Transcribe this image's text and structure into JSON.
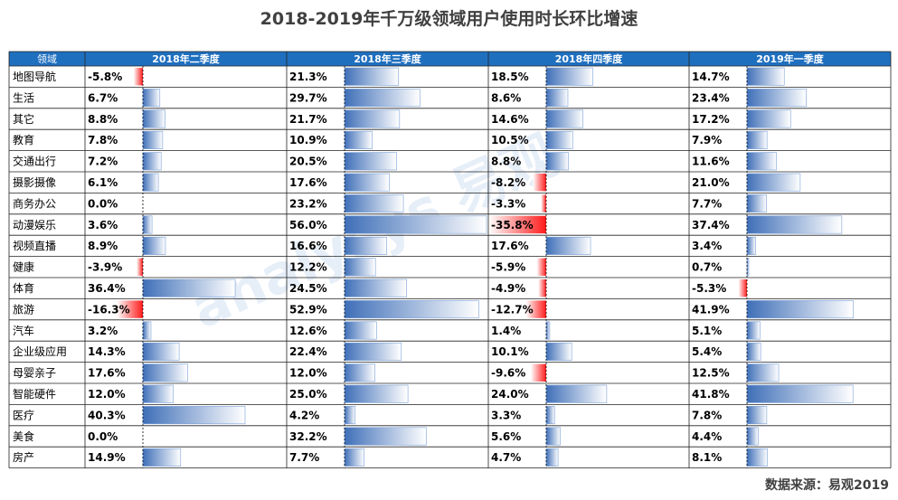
{
  "title": "2018-2019年千万级领域用户使用时长环比增速",
  "source": "数据来源：易观2019",
  "watermark": "analysys 易观",
  "colors": {
    "header_bg": "#1f6fbf",
    "header_text": "#ffffff",
    "positive_bar": "#3f6fb8",
    "negative_bar": "#ff1a1a",
    "border": "#222222",
    "text": "#000000"
  },
  "chart_data": {
    "type": "table",
    "row_header": "领域",
    "columns": [
      "2018年二季度",
      "2018年三季度",
      "2018年四季度",
      "2019年一季度"
    ],
    "unit": "%",
    "rows": [
      {
        "name": "地图导航",
        "values": [
          -5.8,
          21.3,
          18.5,
          14.7
        ],
        "labels": [
          "-5.8%",
          "21.3%",
          "18.5%",
          "14.7%"
        ]
      },
      {
        "name": "生活",
        "values": [
          6.7,
          29.7,
          8.6,
          23.4
        ],
        "labels": [
          "6.7%",
          "29.7%",
          "8.6%",
          "23.4%"
        ]
      },
      {
        "name": "其它",
        "values": [
          8.8,
          21.7,
          14.6,
          17.2
        ],
        "labels": [
          "8.8%",
          "21.7%",
          "14.6%",
          "17.2%"
        ]
      },
      {
        "name": "教育",
        "values": [
          7.8,
          10.9,
          10.5,
          7.9
        ],
        "labels": [
          "7.8%",
          "10.9%",
          "10.5%",
          "7.9%"
        ]
      },
      {
        "name": "交通出行",
        "values": [
          7.2,
          20.5,
          8.8,
          11.6
        ],
        "labels": [
          "7.2%",
          "20.5%",
          "8.8%",
          "11.6%"
        ]
      },
      {
        "name": "摄影摄像",
        "values": [
          6.1,
          17.6,
          -8.2,
          21.0
        ],
        "labels": [
          "6.1%",
          "17.6%",
          "-8.2%",
          "21.0%"
        ]
      },
      {
        "name": "商务办公",
        "values": [
          0.0,
          23.2,
          -3.3,
          7.7
        ],
        "labels": [
          "0.0%",
          "23.2%",
          "-3.3%",
          "7.7%"
        ]
      },
      {
        "name": "动漫娱乐",
        "values": [
          3.6,
          56.0,
          -35.8,
          37.4
        ],
        "labels": [
          "3.6%",
          "56.0%",
          "-35.8%",
          "37.4%"
        ]
      },
      {
        "name": "视频直播",
        "values": [
          8.9,
          16.6,
          17.6,
          3.4
        ],
        "labels": [
          "8.9%",
          "16.6%",
          "17.6%",
          "3.4%"
        ]
      },
      {
        "name": "健康",
        "values": [
          -3.9,
          12.2,
          -5.9,
          0.7
        ],
        "labels": [
          "-3.9%",
          "12.2%",
          "-5.9%",
          "0.7%"
        ]
      },
      {
        "name": "体育",
        "values": [
          36.4,
          24.5,
          -4.9,
          -5.3
        ],
        "labels": [
          "36.4%",
          "24.5%",
          "-4.9%",
          "-5.3%"
        ]
      },
      {
        "name": "旅游",
        "values": [
          -16.3,
          52.9,
          -12.7,
          41.9
        ],
        "labels": [
          "-16.3%",
          "52.9%",
          "-12.7%",
          "41.9%"
        ]
      },
      {
        "name": "汽车",
        "values": [
          3.2,
          12.6,
          1.4,
          5.1
        ],
        "labels": [
          "3.2%",
          "12.6%",
          "1.4%",
          "5.1%"
        ]
      },
      {
        "name": "企业级应用",
        "values": [
          14.3,
          22.4,
          10.1,
          5.4
        ],
        "labels": [
          "14.3%",
          "22.4%",
          "10.1%",
          "5.4%"
        ]
      },
      {
        "name": "母婴亲子",
        "values": [
          17.6,
          12.0,
          -9.6,
          12.5
        ],
        "labels": [
          "17.6%",
          "12.0%",
          "-9.6%",
          "12.5%"
        ]
      },
      {
        "name": "智能硬件",
        "values": [
          12.0,
          25.0,
          24.0,
          41.8
        ],
        "labels": [
          "12.0%",
          "25.0%",
          "24.0%",
          "41.8%"
        ]
      },
      {
        "name": "医疗",
        "values": [
          40.3,
          4.2,
          3.3,
          7.8
        ],
        "labels": [
          "40.3%",
          "4.2%",
          "3.3%",
          "7.8%"
        ]
      },
      {
        "name": "美食",
        "values": [
          0.0,
          32.2,
          5.6,
          4.4
        ],
        "labels": [
          "0.0%",
          "32.2%",
          "5.6%",
          "4.4%"
        ]
      },
      {
        "name": "房产",
        "values": [
          14.9,
          7.7,
          4.7,
          8.1
        ],
        "labels": [
          "14.9%",
          "7.7%",
          "4.7%",
          "8.1%"
        ]
      }
    ]
  }
}
